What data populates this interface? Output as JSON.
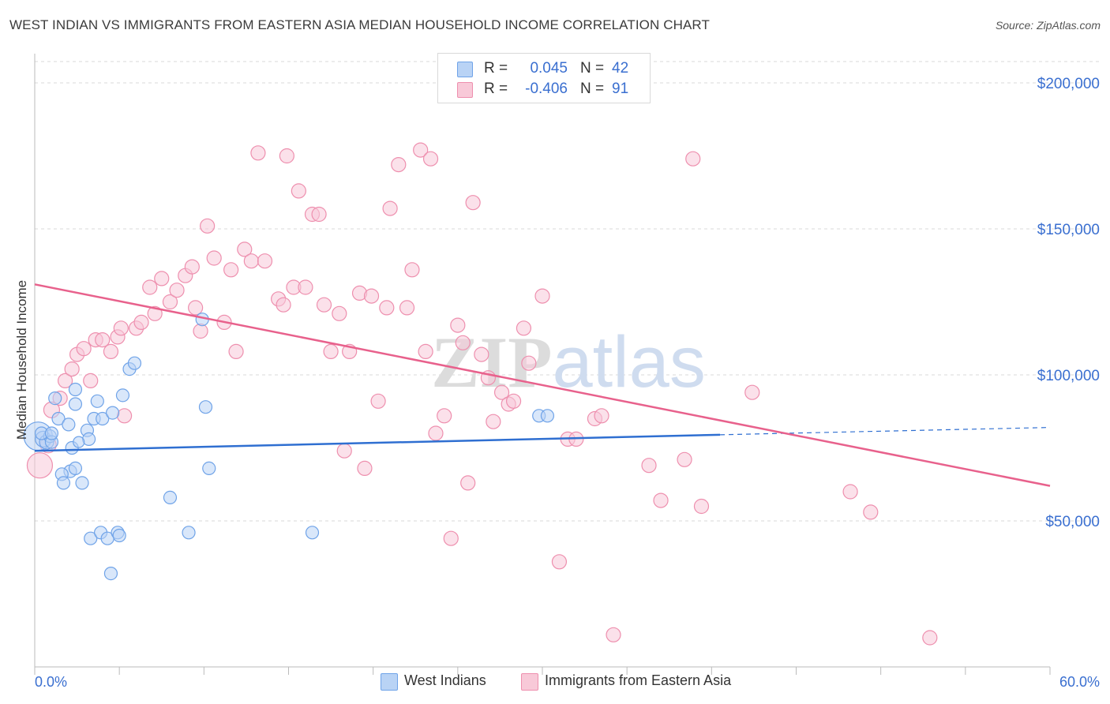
{
  "title": "WEST INDIAN VS IMMIGRANTS FROM EASTERN ASIA MEDIAN HOUSEHOLD INCOME CORRELATION CHART",
  "source": "Source: ZipAtlas.com",
  "watermark": "ZIPatlas",
  "colors": {
    "blue": "#6fa3e8",
    "blue_fill": "#b9d3f5",
    "blue_line": "#2f6fd1",
    "pink": "#ee8fae",
    "pink_fill": "#f8c9d8",
    "pink_line": "#e8618c",
    "tick_label": "#3a6fd0",
    "grid": "#d8d8d8"
  },
  "legend": {
    "r_label": "R =",
    "n_label": "N =",
    "series": [
      {
        "name": "West Indians",
        "r": "0.045",
        "n": "42"
      },
      {
        "name": "Immigrants from Eastern Asia",
        "r": "-0.406",
        "n": "91"
      }
    ]
  },
  "chart_data": {
    "type": "scatter",
    "title": "WEST INDIAN VS IMMIGRANTS FROM EASTERN ASIA MEDIAN HOUSEHOLD INCOME CORRELATION CHART",
    "xlabel": "",
    "ylabel": "Median Household Income",
    "xlim": [
      0,
      60
    ],
    "ylim": [
      0,
      210000
    ],
    "x_tick_labels": [
      "0.0%",
      "60.0%"
    ],
    "y_ticks": [
      50000,
      100000,
      150000,
      200000
    ],
    "y_tick_labels": [
      "$50,000",
      "$100,000",
      "$150,000",
      "$200,000"
    ],
    "grid": true,
    "legend_position": "bottom",
    "series": [
      {
        "name": "West Indians",
        "trend": {
          "x": [
            0,
            40.5
          ],
          "y": [
            74000,
            79500
          ],
          "dashed_extension": {
            "x": [
              40.5,
              60
            ],
            "y": [
              79500,
              82000
            ]
          }
        },
        "points": [
          [
            0.2,
            79000,
            18
          ],
          [
            0.5,
            78000,
            10
          ],
          [
            0.7,
            77000,
            9
          ],
          [
            0.9,
            79000,
            8
          ],
          [
            1.0,
            77000,
            8
          ],
          [
            0.4,
            80000,
            8
          ],
          [
            1.2,
            92000,
            8
          ],
          [
            1.0,
            80000,
            8
          ],
          [
            1.4,
            85000,
            8
          ],
          [
            2.0,
            83000,
            8
          ],
          [
            2.4,
            90000,
            8
          ],
          [
            2.4,
            95000,
            8
          ],
          [
            2.2,
            75000,
            8
          ],
          [
            3.1,
            81000,
            8
          ],
          [
            3.2,
            78000,
            8
          ],
          [
            3.5,
            85000,
            8
          ],
          [
            3.7,
            91000,
            8
          ],
          [
            4.0,
            85000,
            8
          ],
          [
            4.6,
            87000,
            8
          ],
          [
            5.2,
            93000,
            8
          ],
          [
            5.6,
            102000,
            8
          ],
          [
            5.9,
            104000,
            8
          ],
          [
            2.1,
            67000,
            8
          ],
          [
            2.4,
            68000,
            8
          ],
          [
            1.6,
            66000,
            8
          ],
          [
            1.7,
            63000,
            8
          ],
          [
            2.8,
            63000,
            8
          ],
          [
            3.3,
            44000,
            8
          ],
          [
            3.9,
            46000,
            8
          ],
          [
            4.3,
            44000,
            8
          ],
          [
            4.9,
            46000,
            8
          ],
          [
            5.0,
            45000,
            8
          ],
          [
            4.5,
            32000,
            8
          ],
          [
            8.0,
            58000,
            8
          ],
          [
            9.1,
            46000,
            8
          ],
          [
            9.9,
            119000,
            8
          ],
          [
            10.1,
            89000,
            8
          ],
          [
            10.3,
            68000,
            8
          ],
          [
            16.4,
            46000,
            8
          ],
          [
            29.8,
            86000,
            8
          ],
          [
            30.3,
            86000,
            8
          ],
          [
            2.6,
            77000,
            7
          ]
        ]
      },
      {
        "name": "Immigrants from Eastern Asia",
        "trend": {
          "x": [
            0,
            60
          ],
          "y": [
            131000,
            62000
          ]
        },
        "points": [
          [
            0.3,
            69000,
            16
          ],
          [
            0.8,
            76000,
            10
          ],
          [
            1.0,
            88000,
            10
          ],
          [
            1.5,
            92000,
            9
          ],
          [
            1.8,
            98000,
            9
          ],
          [
            2.2,
            102000,
            9
          ],
          [
            2.5,
            107000,
            9
          ],
          [
            2.9,
            109000,
            9
          ],
          [
            3.3,
            98000,
            9
          ],
          [
            3.6,
            112000,
            9
          ],
          [
            4.0,
            112000,
            9
          ],
          [
            4.5,
            108000,
            9
          ],
          [
            4.9,
            113000,
            9
          ],
          [
            5.1,
            116000,
            9
          ],
          [
            5.3,
            86000,
            9
          ],
          [
            6.0,
            116000,
            9
          ],
          [
            6.3,
            118000,
            9
          ],
          [
            6.8,
            130000,
            9
          ],
          [
            7.1,
            121000,
            9
          ],
          [
            7.5,
            133000,
            9
          ],
          [
            8.0,
            125000,
            9
          ],
          [
            8.4,
            129000,
            9
          ],
          [
            8.9,
            134000,
            9
          ],
          [
            9.3,
            137000,
            9
          ],
          [
            9.5,
            123000,
            9
          ],
          [
            9.8,
            115000,
            9
          ],
          [
            10.2,
            151000,
            9
          ],
          [
            10.6,
            140000,
            9
          ],
          [
            11.2,
            118000,
            9
          ],
          [
            11.6,
            136000,
            9
          ],
          [
            11.9,
            108000,
            9
          ],
          [
            12.4,
            143000,
            9
          ],
          [
            12.8,
            139000,
            9
          ],
          [
            13.2,
            176000,
            9
          ],
          [
            13.6,
            139000,
            9
          ],
          [
            14.4,
            126000,
            9
          ],
          [
            14.7,
            124000,
            9
          ],
          [
            14.9,
            175000,
            9
          ],
          [
            15.3,
            130000,
            9
          ],
          [
            15.6,
            163000,
            9
          ],
          [
            16.0,
            130000,
            9
          ],
          [
            16.4,
            155000,
            9
          ],
          [
            16.8,
            155000,
            9
          ],
          [
            17.1,
            124000,
            9
          ],
          [
            17.5,
            108000,
            9
          ],
          [
            18.0,
            121000,
            9
          ],
          [
            18.3,
            74000,
            9
          ],
          [
            18.6,
            108000,
            9
          ],
          [
            19.2,
            128000,
            9
          ],
          [
            19.5,
            68000,
            9
          ],
          [
            19.9,
            127000,
            9
          ],
          [
            20.3,
            91000,
            9
          ],
          [
            20.8,
            123000,
            9
          ],
          [
            21.0,
            157000,
            9
          ],
          [
            21.5,
            172000,
            9
          ],
          [
            22.0,
            123000,
            9
          ],
          [
            22.3,
            136000,
            9
          ],
          [
            22.8,
            177000,
            9
          ],
          [
            23.1,
            108000,
            9
          ],
          [
            23.4,
            174000,
            9
          ],
          [
            23.7,
            80000,
            9
          ],
          [
            24.2,
            86000,
            9
          ],
          [
            24.6,
            44000,
            9
          ],
          [
            25.0,
            117000,
            9
          ],
          [
            25.3,
            111000,
            9
          ],
          [
            25.6,
            63000,
            9
          ],
          [
            25.9,
            159000,
            9
          ],
          [
            26.4,
            107000,
            9
          ],
          [
            26.8,
            99000,
            9
          ],
          [
            27.1,
            84000,
            9
          ],
          [
            27.6,
            94000,
            9
          ],
          [
            28.0,
            90000,
            9
          ],
          [
            28.3,
            91000,
            9
          ],
          [
            28.9,
            116000,
            9
          ],
          [
            29.2,
            104000,
            9
          ],
          [
            30.0,
            127000,
            9
          ],
          [
            31.0,
            36000,
            9
          ],
          [
            31.5,
            78000,
            9
          ],
          [
            32.0,
            78000,
            9
          ],
          [
            33.1,
            85000,
            9
          ],
          [
            33.5,
            86000,
            9
          ],
          [
            34.2,
            11000,
            9
          ],
          [
            36.3,
            69000,
            9
          ],
          [
            37.0,
            57000,
            9
          ],
          [
            38.4,
            71000,
            9
          ],
          [
            38.9,
            174000,
            9
          ],
          [
            39.4,
            55000,
            9
          ],
          [
            42.4,
            94000,
            9
          ],
          [
            48.2,
            60000,
            9
          ],
          [
            49.4,
            53000,
            9
          ],
          [
            52.9,
            10000,
            9
          ]
        ]
      }
    ]
  }
}
